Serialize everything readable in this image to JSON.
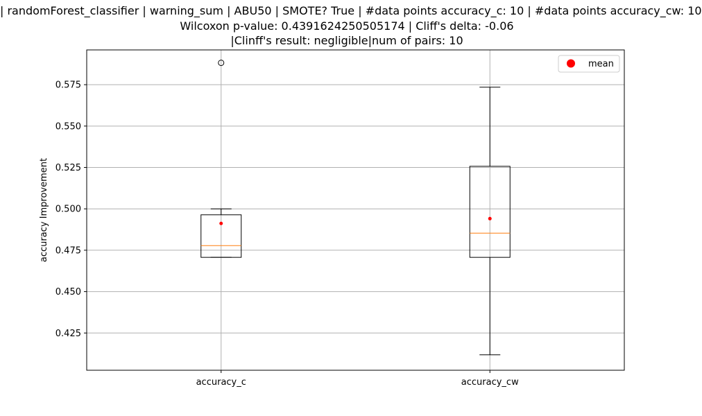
{
  "chart_data": {
    "type": "box",
    "title_lines": [
      "| randomForest_classifier | warning_sum | ABU50 | SMOTE? True | #data points accuracy_c: 10 | #data points accuracy_cw: 10",
      "Wilcoxon p-value: 0.4391624250505174 | Cliff's delta: -0.06",
      "|Clinff's result: negligible|num of pairs: 10"
    ],
    "ylabel": "accuracy Improvement",
    "ylim": [
      0.4025,
      0.596
    ],
    "yticks": [
      0.425,
      0.45,
      0.475,
      0.5,
      0.525,
      0.55,
      0.575
    ],
    "ytick_labels": [
      "0.425",
      "0.450",
      "0.475",
      "0.500",
      "0.525",
      "0.550",
      "0.575"
    ],
    "grid": true,
    "legend": {
      "placement": "top-right",
      "entries": [
        {
          "label": "mean",
          "color": "#ff0000"
        }
      ]
    },
    "colors": {
      "median": "#ff7f0e",
      "mean": "#ff0000",
      "box": "#000000",
      "grid": "#b0b0b0"
    },
    "boxes": [
      {
        "category": "accuracy_c",
        "whisker_low": 0.4707,
        "q1": 0.4707,
        "median": 0.4778,
        "q3": 0.4964,
        "whisker_high": 0.5,
        "mean": 0.4912,
        "outliers": [
          0.5882
        ]
      },
      {
        "category": "accuracy_cw",
        "whisker_low": 0.4118,
        "q1": 0.4707,
        "median": 0.4853,
        "q3": 0.5257,
        "whisker_high": 0.5735,
        "mean": 0.4941,
        "outliers": []
      }
    ]
  }
}
